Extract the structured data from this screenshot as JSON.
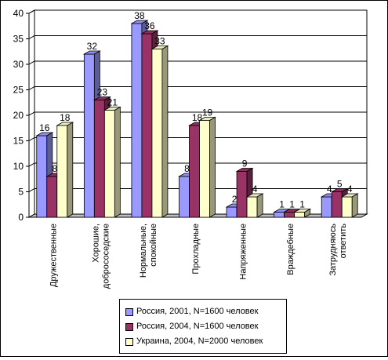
{
  "chart_data": {
    "type": "bar",
    "categories": [
      [
        "Дружественные"
      ],
      [
        "Хорошие,",
        "добрососедские"
      ],
      [
        "Нормальные,",
        "спокойные"
      ],
      [
        "Прохладные"
      ],
      [
        "Напряженные"
      ],
      [
        "Враждебные"
      ],
      [
        "Затрудняюсь",
        "ответить"
      ]
    ],
    "series": [
      {
        "name": "Россия, 2001, N=1600 человек",
        "values": [
          16,
          32,
          38,
          8,
          2,
          1,
          4
        ],
        "color": "#9999FF"
      },
      {
        "name": "Россия, 2004,  N=1600 человек",
        "values": [
          8,
          23,
          36,
          18,
          9,
          1,
          5
        ],
        "color": "#993366"
      },
      {
        "name": "Украина, 2004,  N=2000 человек",
        "values": [
          18,
          21,
          33,
          19,
          4,
          1,
          4
        ],
        "color": "#FFFFCC"
      }
    ],
    "yticks": [
      0,
      5,
      10,
      15,
      20,
      25,
      30,
      35,
      40
    ],
    "ylim": [
      0,
      40
    ],
    "grid": true,
    "legend_position": "bottom",
    "title": "",
    "xlabel": "",
    "ylabel": ""
  }
}
